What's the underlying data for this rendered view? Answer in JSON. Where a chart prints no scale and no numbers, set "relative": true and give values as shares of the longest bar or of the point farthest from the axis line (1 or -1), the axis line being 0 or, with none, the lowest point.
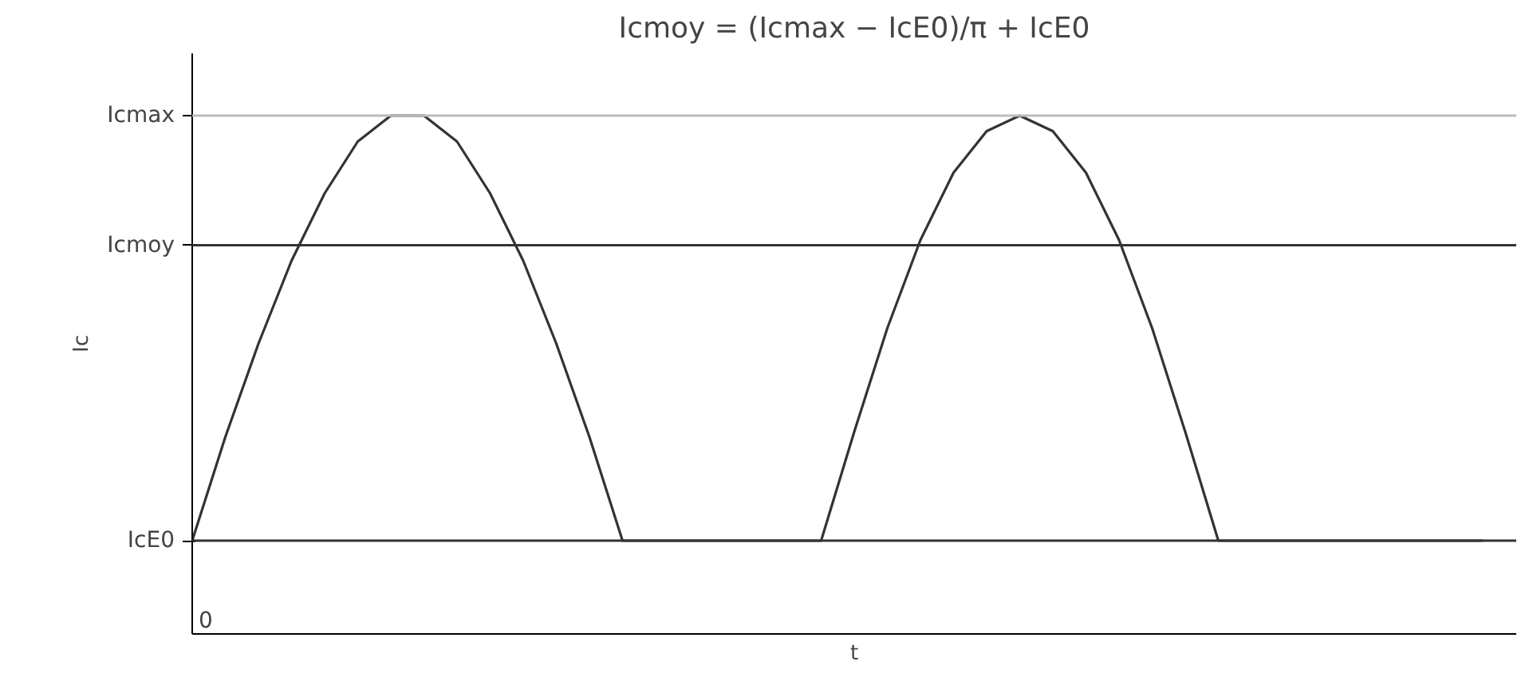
{
  "chart_data": {
    "type": "line",
    "relative": true,
    "title": "Icmoy = (Icmax − IcE0)/π + IcE0",
    "xlabel": "t",
    "ylabel": "Ic",
    "categories": [
      null,
      null,
      null,
      null,
      null,
      null,
      null,
      null,
      null,
      null,
      null,
      null,
      null,
      null,
      null,
      null,
      null,
      null,
      null,
      null,
      null,
      null,
      null,
      null,
      null,
      null,
      null,
      null,
      null,
      null,
      null,
      null,
      null,
      null,
      null,
      null,
      null,
      null,
      null,
      null
    ],
    "series": [
      {
        "color": "#333333",
        "values": [
          0.18,
          0.38,
          0.56,
          0.72,
          0.85,
          0.95,
          1.0,
          1.0,
          0.95,
          0.85,
          0.72,
          0.56,
          0.38,
          0.18,
          0.18,
          0.18,
          0.18,
          0.18,
          0.18,
          0.18,
          0.39,
          0.59,
          0.76,
          0.89,
          0.97,
          1.0,
          0.97,
          0.89,
          0.76,
          0.59,
          0.39,
          0.18,
          0.18,
          0.18,
          0.18,
          0.18,
          0.18,
          0.18,
          0.18,
          0.18
        ]
      }
    ],
    "ref_lines": [
      {
        "axis": "y",
        "value": 1.0,
        "label": "Icmax",
        "color": "#bbbbbb"
      },
      {
        "axis": "y",
        "value": 0.75,
        "label": "Icmoy"
      },
      {
        "axis": "y",
        "value": 0.18,
        "label": "IcE0"
      }
    ],
    "annotations": [
      "0"
    ],
    "tick_labels": "y"
  }
}
